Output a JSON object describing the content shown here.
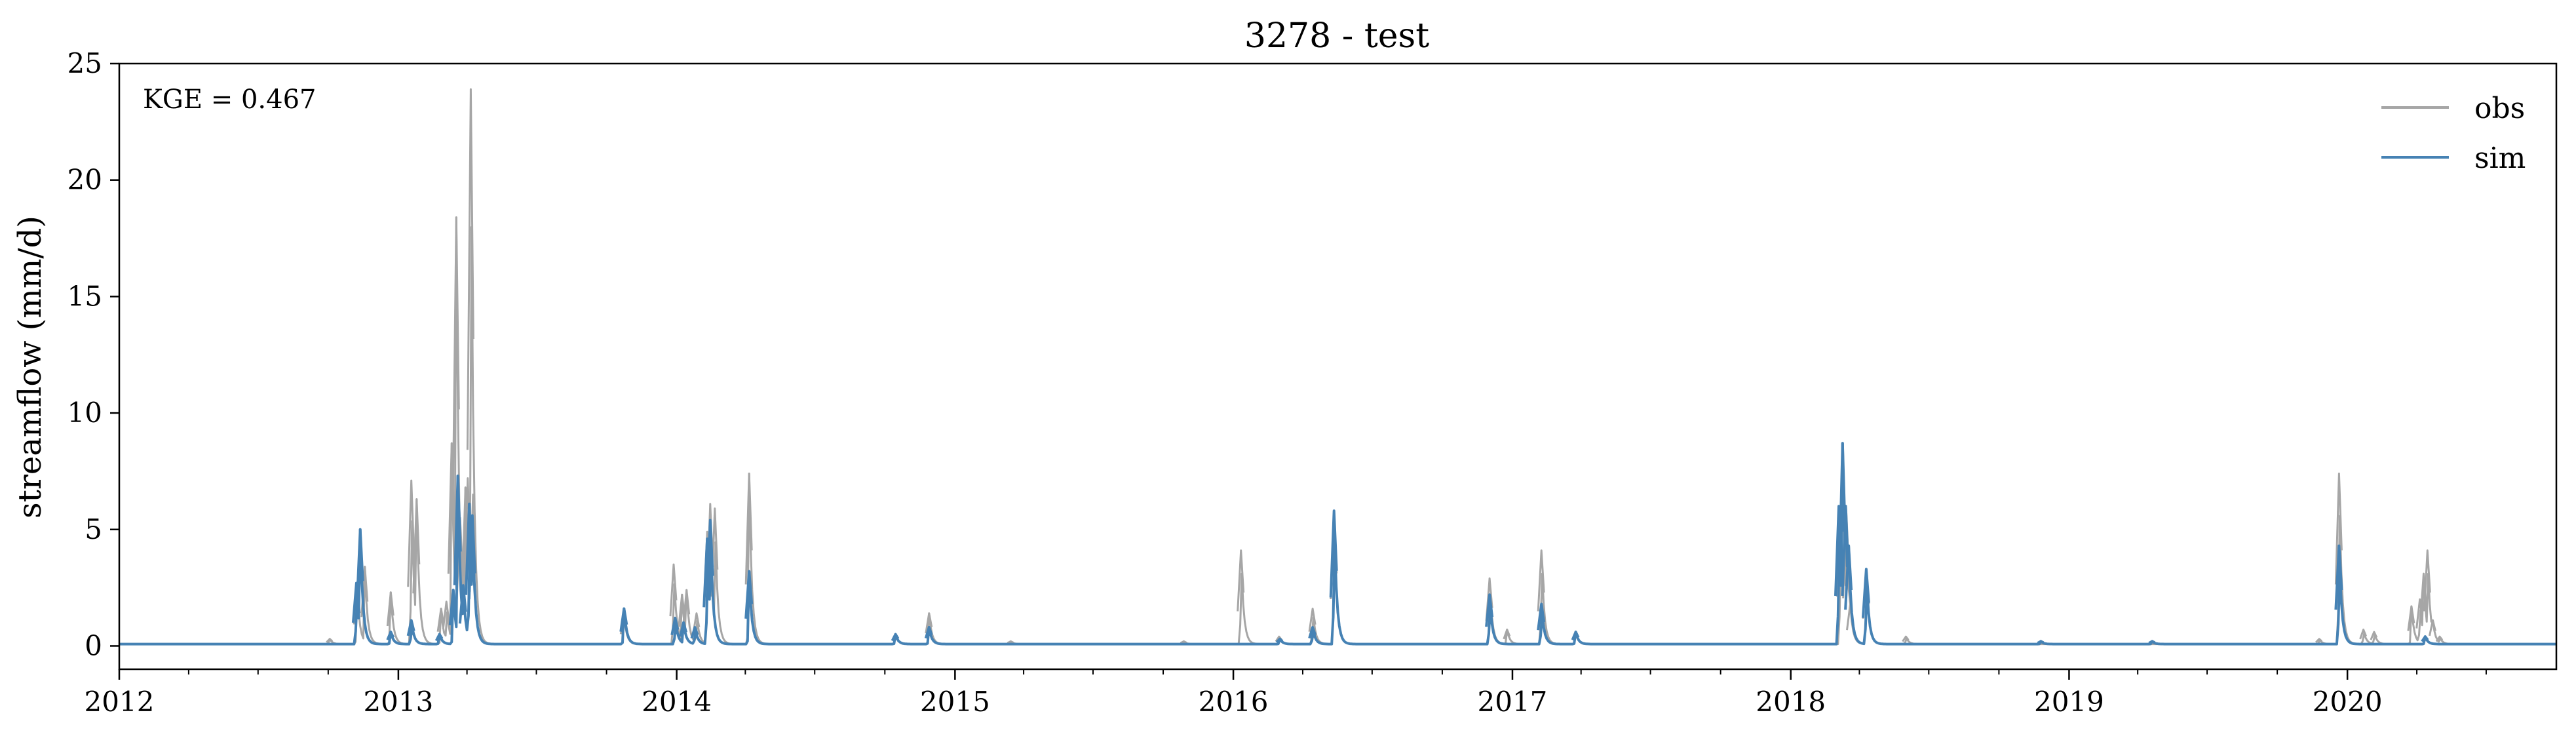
{
  "chart_data": {
    "type": "line",
    "title": "3278 - test",
    "ylabel": "streamflow (mm/d)",
    "xlabel": "",
    "xlim": [
      "2012-01-01",
      "2020-10-01"
    ],
    "ylim": [
      -1,
      25
    ],
    "x_ticks": [
      "2012-01-01",
      "2013-01-01",
      "2014-01-01",
      "2015-01-01",
      "2016-01-01",
      "2017-01-01",
      "2018-01-01",
      "2019-01-01",
      "2020-01-01"
    ],
    "x_tick_labels": [
      "2012",
      "2013",
      "2014",
      "2015",
      "2016",
      "2017",
      "2018",
      "2019",
      "2020"
    ],
    "y_ticks": [
      0,
      5,
      10,
      15,
      20,
      25
    ],
    "annotation": "KGE = 0.467",
    "legend_position": "top-right",
    "grid": false,
    "baseline": 0.08,
    "series": [
      {
        "name": "obs",
        "color": "#a6a6a6",
        "peaks": [
          [
            "2012-10-03",
            0.3
          ],
          [
            "2012-11-08",
            2.5
          ],
          [
            "2012-11-18",
            3.4
          ],
          [
            "2012-12-22",
            2.3
          ],
          [
            "2013-01-18",
            7.1
          ],
          [
            "2013-01-25",
            6.3
          ],
          [
            "2013-02-26",
            1.6
          ],
          [
            "2013-03-05",
            1.9
          ],
          [
            "2013-03-12",
            8.7
          ],
          [
            "2013-03-18",
            18.4
          ],
          [
            "2013-03-23",
            5.5
          ],
          [
            "2013-03-30",
            6.8
          ],
          [
            "2013-04-02",
            7.2
          ],
          [
            "2013-04-06",
            23.9
          ],
          [
            "2013-04-09",
            6.5
          ],
          [
            "2013-10-24",
            1.3
          ],
          [
            "2013-12-28",
            3.5
          ],
          [
            "2014-01-08",
            2.2
          ],
          [
            "2014-01-14",
            2.4
          ],
          [
            "2014-01-27",
            1.4
          ],
          [
            "2014-02-10",
            4.9
          ],
          [
            "2014-02-14",
            6.1
          ],
          [
            "2014-02-20",
            5.9
          ],
          [
            "2014-04-06",
            7.4
          ],
          [
            "2014-10-15",
            0.5
          ],
          [
            "2014-11-28",
            1.4
          ],
          [
            "2015-03-15",
            0.2
          ],
          [
            "2015-10-28",
            0.2
          ],
          [
            "2016-01-11",
            4.1
          ],
          [
            "2016-03-01",
            0.4
          ],
          [
            "2016-04-14",
            1.6
          ],
          [
            "2016-05-12",
            5.6
          ],
          [
            "2016-12-02",
            2.9
          ],
          [
            "2016-12-25",
            0.7
          ],
          [
            "2017-02-08",
            4.1
          ],
          [
            "2017-03-25",
            0.6
          ],
          [
            "2018-03-07",
            5.9
          ],
          [
            "2018-03-10",
            8.0
          ],
          [
            "2018-03-15",
            5.7
          ],
          [
            "2018-03-20",
            1.8
          ],
          [
            "2018-04-10",
            3.2
          ],
          [
            "2018-06-01",
            0.4
          ],
          [
            "2019-11-25",
            0.3
          ],
          [
            "2019-12-21",
            7.4
          ],
          [
            "2020-01-22",
            0.7
          ],
          [
            "2020-02-05",
            0.6
          ],
          [
            "2020-03-25",
            1.7
          ],
          [
            "2020-04-05",
            2.0
          ],
          [
            "2020-04-10",
            3.1
          ],
          [
            "2020-04-15",
            4.1
          ],
          [
            "2020-04-22",
            1.1
          ],
          [
            "2020-05-01",
            0.4
          ]
        ]
      },
      {
        "name": "sim",
        "color": "#4682b4",
        "peaks": [
          [
            "2012-11-07",
            2.7
          ],
          [
            "2012-11-12",
            5.0
          ],
          [
            "2012-12-22",
            0.6
          ],
          [
            "2013-01-18",
            1.1
          ],
          [
            "2013-02-24",
            0.5
          ],
          [
            "2013-03-14",
            2.4
          ],
          [
            "2013-03-20",
            7.3
          ],
          [
            "2013-03-27",
            2.6
          ],
          [
            "2013-04-04",
            6.1
          ],
          [
            "2013-04-08",
            5.6
          ],
          [
            "2013-10-24",
            1.6
          ],
          [
            "2013-12-30",
            1.2
          ],
          [
            "2014-01-10",
            1.0
          ],
          [
            "2014-01-25",
            0.8
          ],
          [
            "2014-02-10",
            4.6
          ],
          [
            "2014-02-14",
            5.4
          ],
          [
            "2014-04-06",
            3.2
          ],
          [
            "2014-10-15",
            0.5
          ],
          [
            "2014-11-28",
            0.8
          ],
          [
            "2016-03-02",
            0.3
          ],
          [
            "2016-04-14",
            0.8
          ],
          [
            "2016-05-12",
            5.8
          ],
          [
            "2016-12-02",
            2.2
          ],
          [
            "2017-02-08",
            1.8
          ],
          [
            "2017-03-25",
            0.6
          ],
          [
            "2018-03-05",
            6.0
          ],
          [
            "2018-03-10",
            8.7
          ],
          [
            "2018-03-14",
            6.0
          ],
          [
            "2018-03-18",
            4.3
          ],
          [
            "2018-04-10",
            3.3
          ],
          [
            "2018-11-25",
            0.2
          ],
          [
            "2019-04-20",
            0.2
          ],
          [
            "2019-12-21",
            4.3
          ],
          [
            "2020-04-12",
            0.4
          ]
        ]
      }
    ]
  }
}
